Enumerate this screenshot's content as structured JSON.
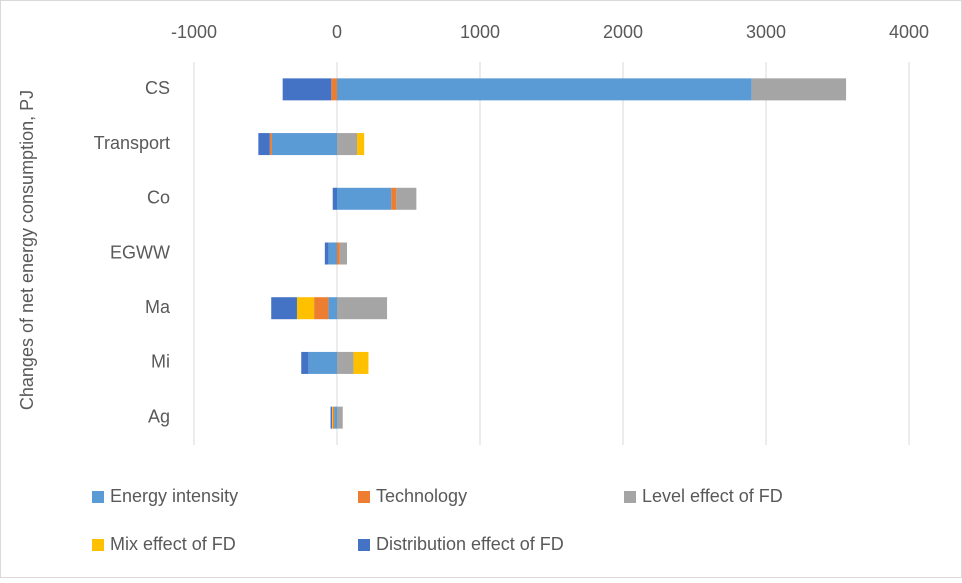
{
  "chart_data": {
    "type": "stacked-bar-horizontal",
    "y_axis_label": "Changes of net energy consumption, PJ",
    "categories": [
      "CS",
      "Transport",
      "Co",
      "EGWW",
      "Ma",
      "Mi",
      "Ag"
    ],
    "series": [
      {
        "name": "Energy intensity",
        "color": "#5b9bd5",
        "values": [
          2900,
          -455,
          380,
          -60,
          -60,
          -200,
          -20
        ]
      },
      {
        "name": "Technology",
        "color": "#ed7d31",
        "values": [
          -40,
          -15,
          35,
          20,
          -100,
          0,
          -10
        ]
      },
      {
        "name": "Level effect of FD",
        "color": "#a5a5a5",
        "values": [
          660,
          140,
          140,
          50,
          350,
          115,
          40
        ]
      },
      {
        "name": "Mix effect of FD",
        "color": "#ffc000",
        "values": [
          0,
          50,
          0,
          0,
          -120,
          105,
          -5
        ]
      },
      {
        "name": "Distribution  effect of FD",
        "color": "#4472c4",
        "values": [
          -340,
          -80,
          -30,
          -25,
          -180,
          -50,
          -10
        ]
      }
    ],
    "xlim": [
      -1000,
      4000
    ],
    "xticks": [
      -1000,
      0,
      1000,
      2000,
      3000,
      4000
    ],
    "grid": true
  }
}
